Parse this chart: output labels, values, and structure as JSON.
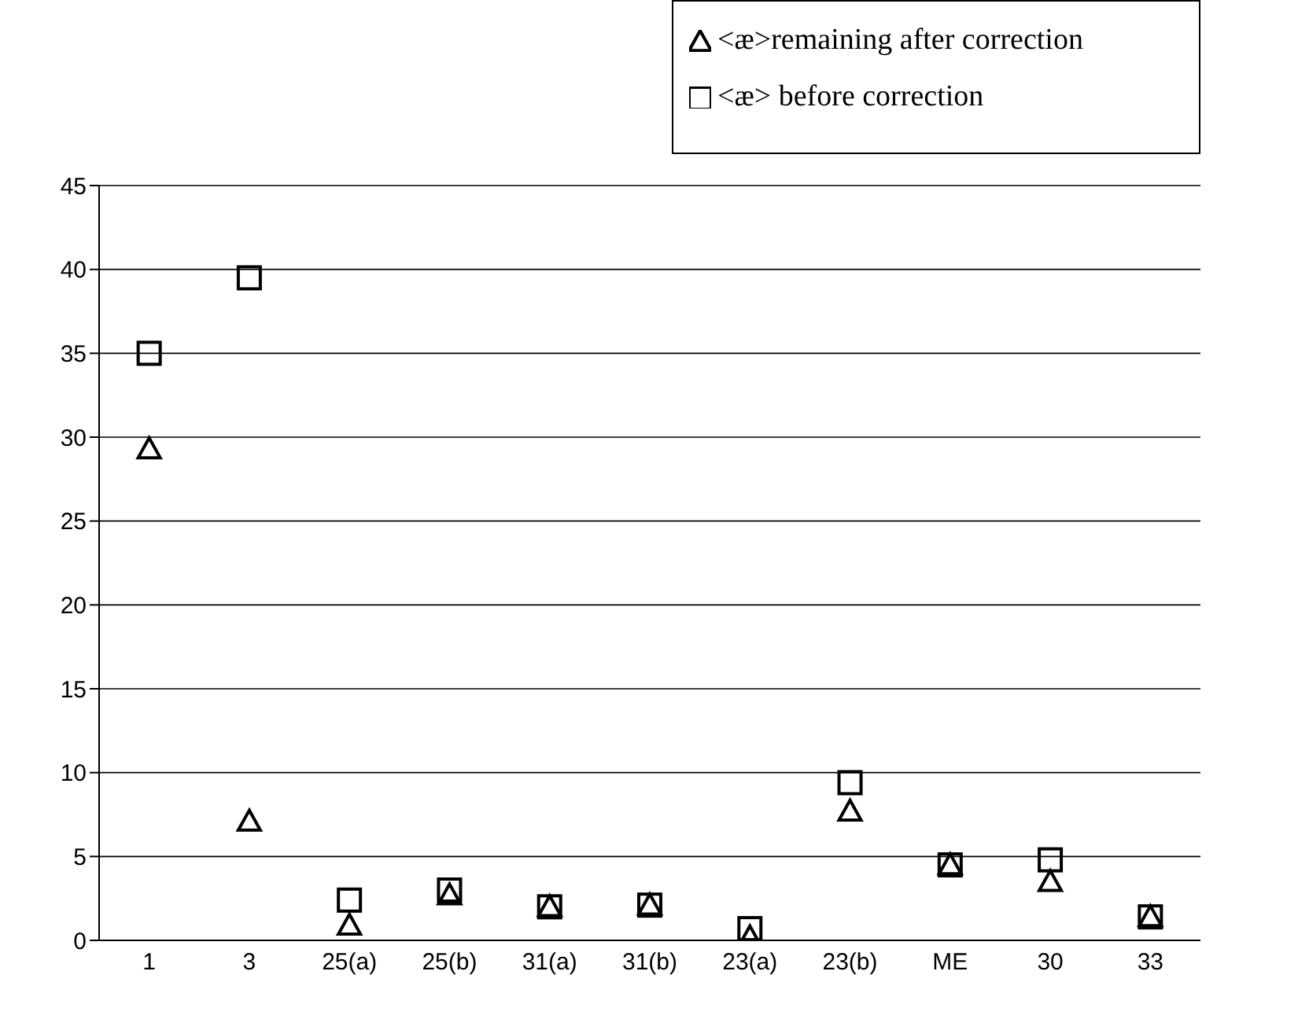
{
  "chart_data": {
    "type": "scatter",
    "categories": [
      "1",
      "3",
      "25(a)",
      "25(b)",
      "31(a)",
      "31(b)",
      "23(a)",
      "23(b)",
      "ME",
      "30",
      "33"
    ],
    "series": [
      {
        "name": "<æ>remaining after correction",
        "color": "#000000",
        "marker": "triangle",
        "values": [
          29.3,
          7.1,
          0.9,
          2.7,
          2.0,
          2.1,
          0.2,
          7.7,
          4.5,
          3.5,
          1.4
        ]
      },
      {
        "name": "<æ> before correction",
        "color": "#000000",
        "marker": "square",
        "values": [
          35,
          39.5,
          2.4,
          3.0,
          2.0,
          2.1,
          0.7,
          9.4,
          4.5,
          4.8,
          1.4
        ]
      }
    ],
    "ylim": [
      0,
      45
    ],
    "yticks": [
      0,
      5,
      10,
      15,
      20,
      25,
      30,
      35,
      40,
      45
    ],
    "grid": "y",
    "legend": "top right"
  }
}
